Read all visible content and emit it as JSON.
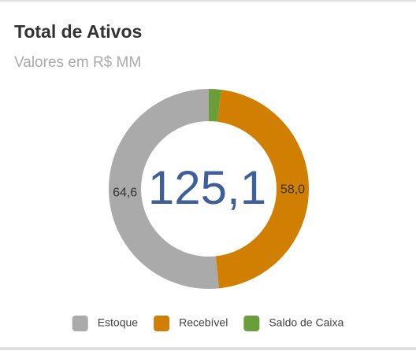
{
  "chart_data": {
    "type": "donut",
    "title": "Total de Ativos",
    "subtitle": "Valores em R$ MM",
    "center_text": "125,1",
    "categories": [
      "Estoque",
      "Recebível",
      "Saldo de Caixa"
    ],
    "values": [
      64.6,
      58.0,
      2.5
    ],
    "value_labels": [
      "64,6",
      "58,0",
      null
    ],
    "colors": [
      "#aaaaaa",
      "#d17f00",
      "#6a9e3a"
    ],
    "legend": "bottom"
  }
}
